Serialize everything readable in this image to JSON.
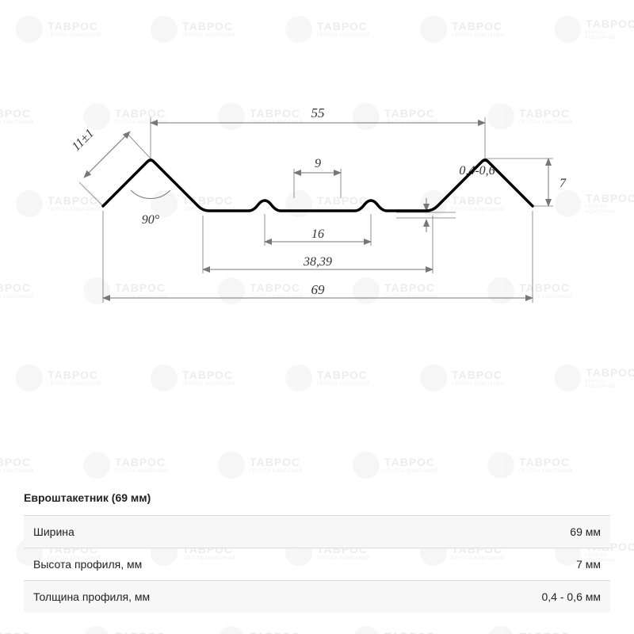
{
  "watermark": {
    "brand": "ТАВРОС",
    "sub": "ГРУППА КОМПАНИЙ"
  },
  "diagram": {
    "type": "technical-profile",
    "profile_stroke_color": "#000000",
    "profile_stroke_width": 3.5,
    "dim_line_color": "#777777",
    "dim_text_color": "#333333",
    "background_color": "#ffffff",
    "dims": {
      "top_span": "55",
      "left_slope": "11±1",
      "angle": "90°",
      "mid_ridge": "9",
      "thickness": "0,4-0,6",
      "right_height": "7",
      "mid_span": "16",
      "inner_span": "38,39",
      "full_span": "69"
    }
  },
  "spec": {
    "title": "Евроштакетник (69 мм)",
    "rows": [
      {
        "label": "Ширина",
        "value": "69 мм"
      },
      {
        "label": "Высота профиля, мм",
        "value": "7 мм"
      },
      {
        "label": "Толщина профиля, мм",
        "value": "0,4 - 0,6 мм"
      }
    ]
  }
}
